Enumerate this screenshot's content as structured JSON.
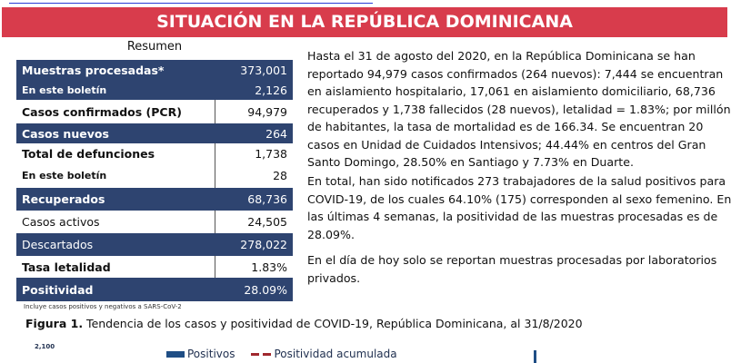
{
  "banner": {
    "title": "SITUACIÓN EN LA REPÚBLICA DOMINICANA",
    "color": "#d83c4c"
  },
  "summary": {
    "title": "Resumen",
    "navy_color": "#2e4470",
    "rows": [
      {
        "label": "Muestras procesadas*",
        "value": "373,001"
      },
      {
        "label": "En este boletín",
        "value": "2,126"
      },
      {
        "label": "Casos confirmados (PCR)",
        "value": "94,979"
      },
      {
        "label": "Casos nuevos",
        "value": "264"
      },
      {
        "label": "Total de defunciones",
        "value": "1,738"
      },
      {
        "label": "En este boletín",
        "value": "28"
      },
      {
        "label": "Recuperados",
        "value": "68,736"
      },
      {
        "label": "Casos activos",
        "value": "24,505"
      },
      {
        "label": "Descartados",
        "value": "278,022"
      },
      {
        "label": "Tasa letalidad",
        "value": "1.83%"
      },
      {
        "label": "Positividad",
        "value": "28.09%"
      }
    ],
    "footnote": "Incluye casos positivos y negativos a SARS-CoV-2"
  },
  "body": {
    "p1": [
      "Hasta el 31 de agosto del 2020, en la República Dominicana se han",
      "reportado 94,979 casos confirmados (264 nuevos): 7,444 se encuentran",
      "en aislamiento hospitalario, 17,061 en aislamiento domiciliario, 68,736",
      "recuperados y 1,738 fallecidos (28 nuevos), letalidad = 1.83%; por millón",
      "de habitantes, la tasa de mortalidad es de 166.34.  Se encuentran 20",
      "casos en Unidad de Cuidados Intensivos; 44.44% en centros del Gran",
      "Santo Domingo, 28.50% en Santiago y 7.73% en Duarte."
    ],
    "p2": [
      "En total, han sido notificados 273 trabajadores de la salud positivos para",
      "COVID-19, de los cuales 64.10% (175) corresponden al sexo femenino. En",
      "las últimas 4 semanas, la positividad de las muestras procesadas es de",
      "28.09%."
    ],
    "p3": [
      "En el día de hoy solo se reportan muestras procesadas por laboratorios",
      "privados."
    ]
  },
  "figure": {
    "label": "Figura 1.",
    "caption": " Tendencia de los casos y positividad de COVID-19, República Dominicana, al 31/8/2020",
    "y_tick_top": "2,100",
    "legend": [
      {
        "name": "Positivos",
        "color": "#1f4e85"
      },
      {
        "name": "Positividad acumulada",
        "color": "#a0282e"
      }
    ]
  }
}
